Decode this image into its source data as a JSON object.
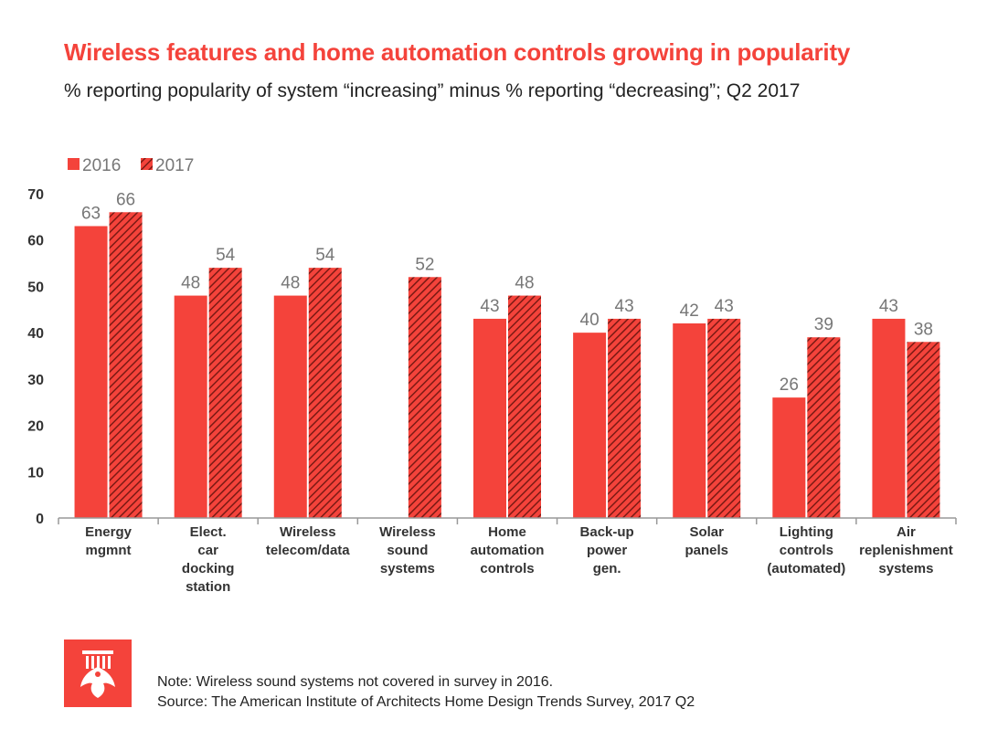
{
  "title": "Wireless features and home automation controls growing in popularity",
  "subtitle": "% reporting popularity of system “increasing” minus % reporting “decreasing”; Q2 2017",
  "note": "Note: Wireless sound systems not covered in survey in 2016.",
  "source": "Source: The American Institute of Architects Home Design Trends Survey, 2017 Q2",
  "logo": {
    "icon": "aia-eagle-logo-icon",
    "color": "#f4433b"
  },
  "colors": {
    "series_2016": "#f4433b",
    "series_2017": "#f4433b",
    "hatch": "#7a1a14",
    "axis": "#999999",
    "label": "#777777"
  },
  "chart_data": {
    "type": "bar",
    "categories": [
      [
        "Energy",
        "mgmnt"
      ],
      [
        "Elect.",
        "car",
        "docking",
        "station"
      ],
      [
        "Wireless",
        "telecom/data"
      ],
      [
        "Wireless",
        "sound",
        "systems"
      ],
      [
        "Home",
        "automation",
        "controls"
      ],
      [
        "Back-up",
        "power",
        "gen."
      ],
      [
        "Solar",
        "panels"
      ],
      [
        "Lighting",
        "controls",
        "(automated)"
      ],
      [
        "Air",
        "replenishment",
        "systems"
      ]
    ],
    "series": [
      {
        "name": "2016",
        "pattern": "solid",
        "values": [
          63,
          48,
          48,
          null,
          43,
          40,
          42,
          26,
          43
        ],
        "labels": [
          "63",
          "48",
          "48",
          "",
          "43",
          "40",
          "42",
          "26",
          "43"
        ]
      },
      {
        "name": "2017",
        "pattern": "hatched",
        "values": [
          66,
          54,
          54,
          52,
          48,
          43,
          43,
          39,
          38
        ],
        "labels": [
          "66",
          "54",
          "54",
          "52",
          "48",
          "43",
          "43",
          "39",
          "38"
        ]
      }
    ],
    "yticks": [
      "0",
      "10",
      "20",
      "30",
      "40",
      "50",
      "60",
      "70"
    ],
    "ylim": [
      0,
      70
    ],
    "grid": false,
    "legend_position": "top-left"
  }
}
